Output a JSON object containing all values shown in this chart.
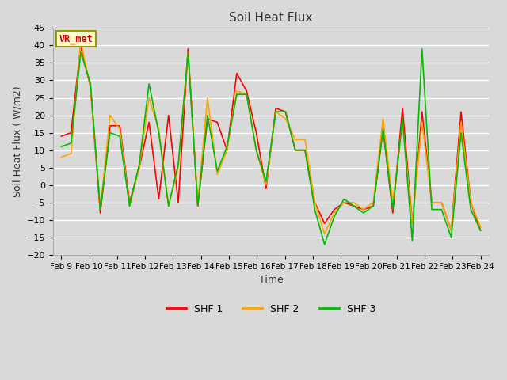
{
  "title": "Soil Heat Flux",
  "xlabel": "Time",
  "ylabel": "Soil Heat Flux ( W/m2)",
  "ylim": [
    -20,
    45
  ],
  "yticks": [
    -20,
    -15,
    -10,
    -5,
    0,
    5,
    10,
    15,
    20,
    25,
    30,
    35,
    40,
    45
  ],
  "annotation_text": "VR_met",
  "annotation_color": "#cc0000",
  "annotation_bg": "#ffffcc",
  "annotation_border": "#999900",
  "bg_color": "#d9d9d9",
  "grid_color": "#ffffff",
  "colors": {
    "SHF 1": "#ff0000",
    "SHF 2": "#ffa500",
    "SHF 3": "#00bb00"
  },
  "x_labels": [
    "Feb 9",
    "Feb 10",
    "Feb 11",
    "Feb 12",
    "Feb 13",
    "Feb 14",
    "Feb 15",
    "Feb 16",
    "Feb 17",
    "Feb 18",
    "Feb 19",
    "Feb 20",
    "Feb 21",
    "Feb 22",
    "Feb 23",
    "Feb 24"
  ],
  "shf1": [
    14,
    15,
    40,
    28,
    -8,
    17,
    17,
    -5,
    5,
    18,
    -4,
    20,
    -5,
    39,
    -6,
    19,
    18,
    10,
    32,
    27,
    15,
    -1,
    22,
    21,
    10,
    10,
    -5,
    -11,
    -7,
    -5,
    -6,
    -7,
    -6,
    16,
    -8,
    22,
    -11,
    21,
    -5,
    -5,
    -13,
    21,
    -5,
    -13
  ],
  "shf2": [
    8,
    9,
    41,
    28,
    -7,
    20,
    16,
    -6,
    5,
    25,
    16,
    -6,
    5,
    38,
    -5,
    25,
    3,
    10,
    27,
    26,
    10,
    0,
    21,
    19,
    13,
    13,
    -5,
    -14,
    -8,
    -5,
    -5,
    -7,
    -5,
    19,
    -5,
    18,
    -11,
    18,
    -5,
    -5,
    -13,
    18,
    -5,
    -12
  ],
  "shf3": [
    11,
    12,
    38,
    29,
    -7,
    15,
    14,
    -6,
    6,
    29,
    15,
    -6,
    6,
    38,
    -6,
    20,
    4,
    11,
    26,
    26,
    10,
    1,
    21,
    21,
    10,
    10,
    -7,
    -17,
    -9,
    -4,
    -6,
    -8,
    -6,
    16,
    -7,
    19,
    -16,
    39,
    -7,
    -7,
    -15,
    15,
    -7,
    -13
  ],
  "n_points": 44
}
